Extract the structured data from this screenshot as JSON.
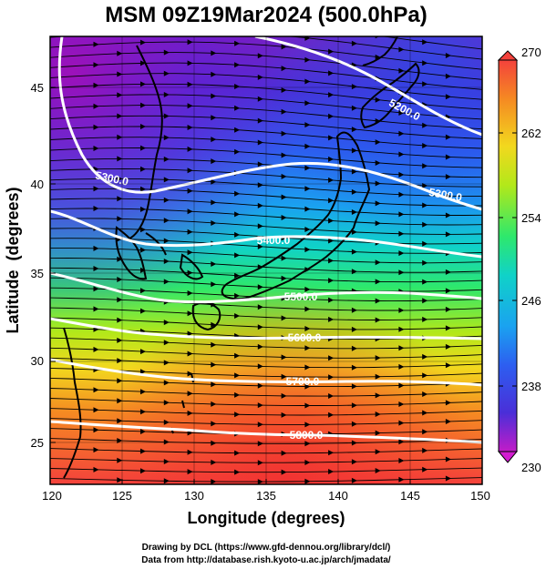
{
  "title": "MSM 09Z19Mar2024 (500.0hPa)",
  "x_axis": {
    "label": "Longitude (degrees)",
    "ticks": [
      "120",
      "125",
      "130",
      "135",
      "140",
      "145",
      "150"
    ],
    "range": [
      120,
      150
    ]
  },
  "y_axis": {
    "label": "Latitude  (degrees)",
    "ticks": [
      "25",
      "30",
      "35",
      "40",
      "45"
    ],
    "range": [
      22.4,
      47.6
    ]
  },
  "colorbar": {
    "ticks": [
      "270",
      "262",
      "254",
      "246",
      "238",
      "230"
    ],
    "range": [
      230,
      270
    ]
  },
  "contours": [
    {
      "label": "5200.0",
      "value": 5200
    },
    {
      "label": "5300.0",
      "value": 5300
    },
    {
      "label": "5300.0",
      "value": 5300
    },
    {
      "label": "5400.0",
      "value": 5400
    },
    {
      "label": "5500.0",
      "value": 5500
    },
    {
      "label": "5600.0",
      "value": 5600
    },
    {
      "label": "5700.0",
      "value": 5700
    },
    {
      "label": "5800.0",
      "value": 5800
    }
  ],
  "footer": {
    "line1": "Drawing by DCL (https://www.gfd-dennou.org/library/dcl/)",
    "line2": "Data from http://database.rish.kyoto-u.ac.jp/arch/jmadata/"
  }
}
